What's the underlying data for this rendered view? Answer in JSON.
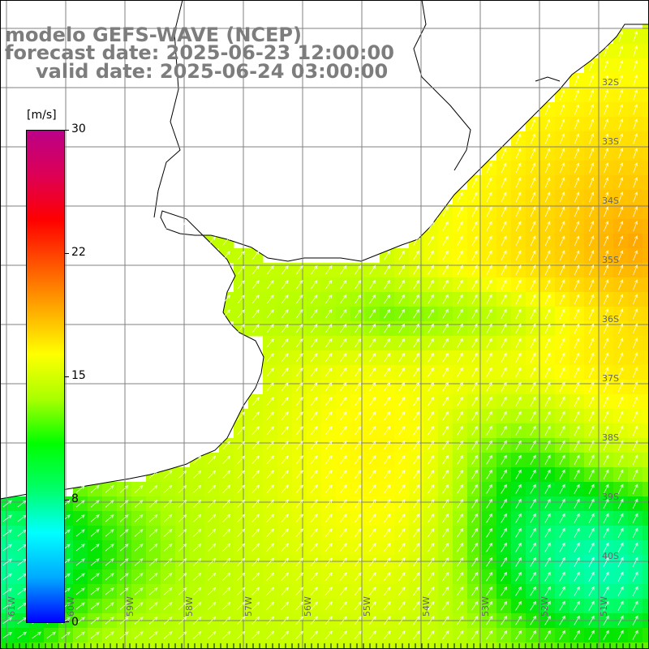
{
  "title": {
    "line1": "modelo GEFS-WAVE (NCEP)",
    "line2": "forecast date: 2025-06-23 12:00:00",
    "line3": "valid date: 2025-06-24 03:00:00"
  },
  "colorbar": {
    "unit": "[m/s]",
    "min": 0,
    "max": 30,
    "ticks": [
      "30",
      "22",
      "15",
      "8",
      "0"
    ],
    "tick_values": [
      30,
      22,
      15,
      8,
      0
    ],
    "stops": [
      "#0000ff",
      "#00aaff",
      "#00ffff",
      "#00ff66",
      "#00ff00",
      "#aaff00",
      "#ffff00",
      "#ffaa00",
      "#ff5500",
      "#ff0000",
      "#dd0055",
      "#bb0088"
    ]
  },
  "map": {
    "lat_labels": [
      "32S",
      "33S",
      "34S",
      "35S",
      "36S",
      "37S",
      "38S",
      "39S",
      "40S"
    ],
    "lon_labels": [
      "61W",
      "60W",
      "59W",
      "58W",
      "57W",
      "56W",
      "55W",
      "54W",
      "53W",
      "52W",
      "51W"
    ],
    "variable": "wind speed",
    "field_note": "wind arrows shown in white"
  }
}
